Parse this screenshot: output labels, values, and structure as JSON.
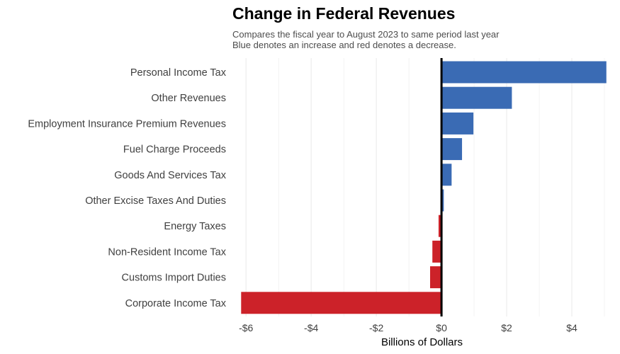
{
  "chart_data": {
    "type": "bar",
    "orientation": "horizontal",
    "title": "Change in Federal Revenues",
    "subtitle": [
      "Compares the fiscal year to August 2023 to same period last year",
      "Blue denotes an increase and red denotes a decrease."
    ],
    "xlabel": "Billions of Dollars",
    "ylabel": "",
    "xlim": [
      -6.2,
      5.0
    ],
    "xticks": [
      -6,
      -4,
      -2,
      0,
      2,
      4
    ],
    "xtick_labels": [
      "-$6",
      "-$4",
      "-$2",
      "$0",
      "$2",
      "$4"
    ],
    "grid": true,
    "colors": {
      "increase": "#3a6bb4",
      "decrease": "#cc2229",
      "zero_line": "#000000",
      "grid": "#ebebeb"
    },
    "categories": [
      "Personal Income Tax",
      "Other Revenues",
      "Employment Insurance Premium Revenues",
      "Fuel Charge Proceeds",
      "Goods And Services Tax",
      "Other Excise Taxes And Duties",
      "Energy Taxes",
      "Non-Resident Income Tax",
      "Customs Import Duties",
      "Corporate Income Tax"
    ],
    "values": [
      5.06,
      2.16,
      0.98,
      0.63,
      0.31,
      0.07,
      -0.09,
      -0.28,
      -0.35,
      -6.15
    ]
  }
}
